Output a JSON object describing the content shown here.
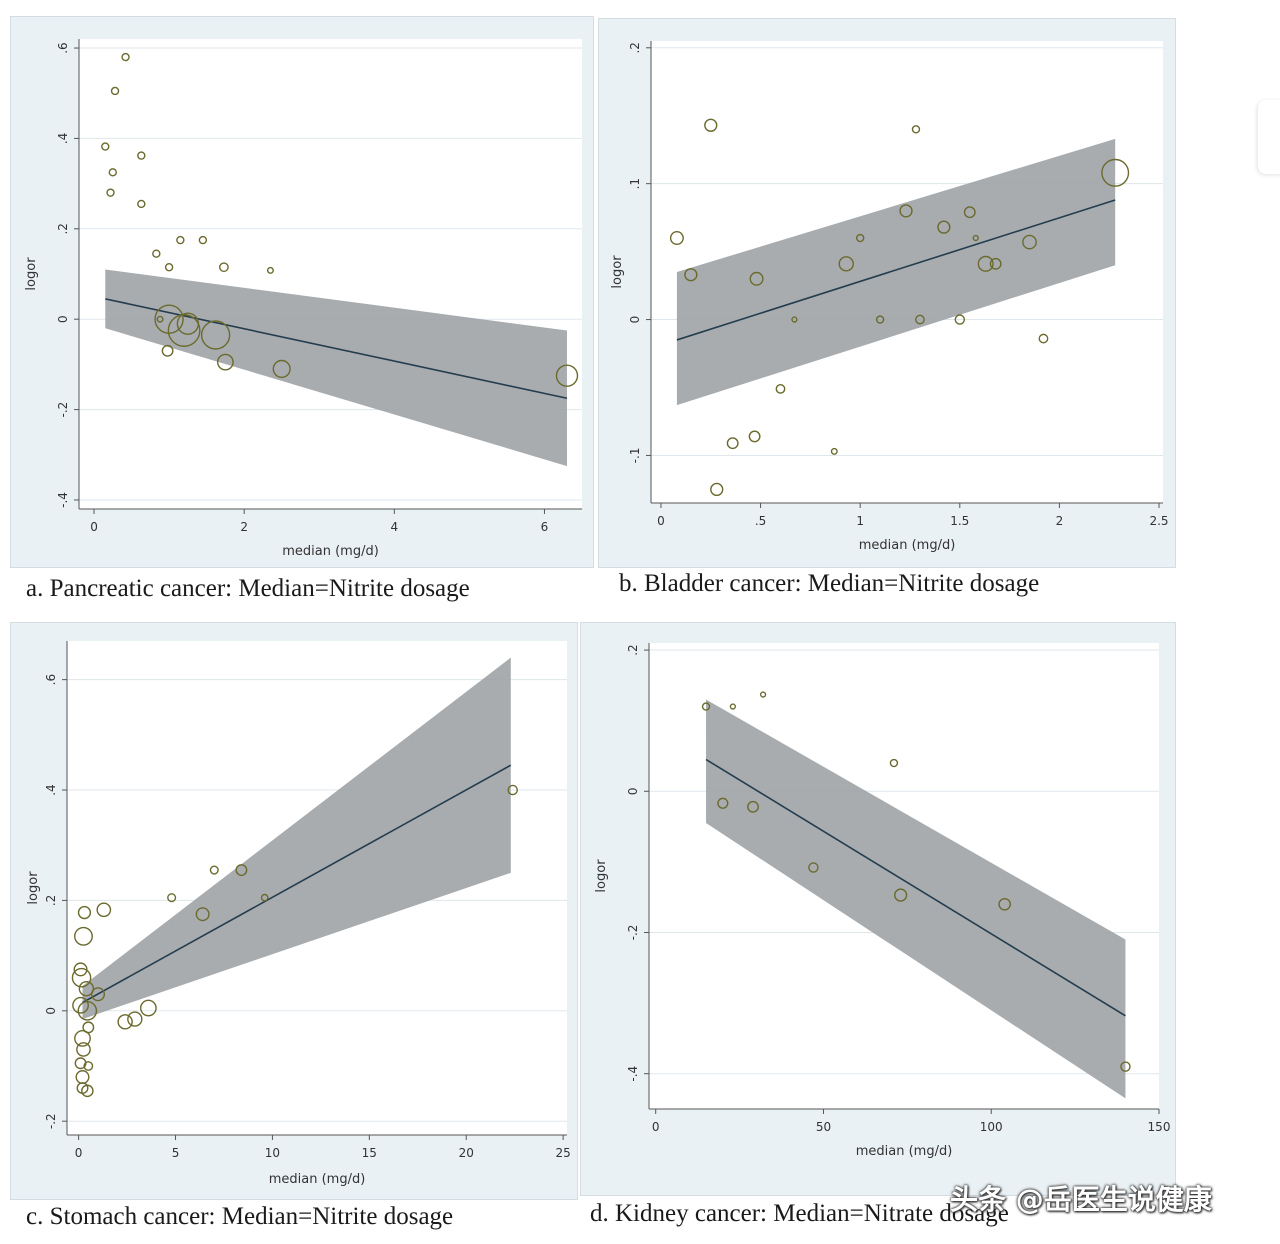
{
  "colors": {
    "panel_bg": "#eaf1f5",
    "plot_bg": "#ffffff",
    "band": "#9fa3a6",
    "fit_line": "#243d4e",
    "point": "#6b6a2e",
    "grid": "#dfe7ec"
  },
  "captions": {
    "a": "a. Pancreatic cancer: Median=Nitrite dosage",
    "b": "b. Bladder cancer: Median=Nitrite dosage",
    "c": "c. Stomach cancer: Median=Nitrite dosage",
    "d": "d. Kidney cancer: Median=Nitrate dosage"
  },
  "watermark": "头条 @岳医生说健康",
  "chart_data": [
    {
      "id": "a",
      "type": "scatter",
      "title": "Pancreatic cancer",
      "xlabel": "median (mg/d)",
      "ylabel": "logor",
      "xlim": [
        -0.2,
        6.5
      ],
      "ylim": [
        -0.42,
        0.62
      ],
      "xticks": [
        0,
        2,
        4,
        6
      ],
      "xtick_labels": [
        "0",
        "2",
        "4",
        "6"
      ],
      "yticks": [
        -0.4,
        -0.2,
        0,
        0.2,
        0.4,
        0.6
      ],
      "ytick_labels": [
        "-.4",
        "-.2",
        "0",
        ".2",
        ".4",
        ".6"
      ],
      "fit": {
        "x": [
          0.15,
          6.3
        ],
        "y": [
          0.045,
          -0.175
        ]
      },
      "band": {
        "x": [
          0.15,
          6.3
        ],
        "upper": [
          0.11,
          -0.025
        ],
        "lower": [
          -0.02,
          -0.325
        ]
      },
      "points": [
        {
          "x": 0.42,
          "y": 0.58,
          "r": 1
        },
        {
          "x": 0.28,
          "y": 0.505,
          "r": 1
        },
        {
          "x": 0.15,
          "y": 0.382,
          "r": 1
        },
        {
          "x": 0.63,
          "y": 0.362,
          "r": 1
        },
        {
          "x": 0.25,
          "y": 0.325,
          "r": 1
        },
        {
          "x": 0.22,
          "y": 0.28,
          "r": 1
        },
        {
          "x": 0.63,
          "y": 0.255,
          "r": 1
        },
        {
          "x": 1.15,
          "y": 0.175,
          "r": 1
        },
        {
          "x": 1.45,
          "y": 0.175,
          "r": 1
        },
        {
          "x": 0.83,
          "y": 0.145,
          "r": 1
        },
        {
          "x": 1.0,
          "y": 0.115,
          "r": 1
        },
        {
          "x": 1.73,
          "y": 0.115,
          "r": 1.2
        },
        {
          "x": 2.35,
          "y": 0.108,
          "r": 0.8
        },
        {
          "x": 0.88,
          "y": 0.0,
          "r": 0.8
        },
        {
          "x": 1.0,
          "y": 0.0,
          "r": 4
        },
        {
          "x": 1.2,
          "y": -0.025,
          "r": 4.5
        },
        {
          "x": 1.25,
          "y": -0.01,
          "r": 3
        },
        {
          "x": 1.62,
          "y": -0.035,
          "r": 4
        },
        {
          "x": 0.98,
          "y": -0.07,
          "r": 1.5
        },
        {
          "x": 1.75,
          "y": -0.095,
          "r": 2.2
        },
        {
          "x": 2.5,
          "y": -0.11,
          "r": 2.4
        },
        {
          "x": 6.3,
          "y": -0.125,
          "r": 3
        }
      ]
    },
    {
      "id": "b",
      "type": "scatter",
      "title": "Bladder cancer",
      "xlabel": "median (mg/d)",
      "ylabel": "logor",
      "xlim": [
        -0.05,
        2.52
      ],
      "ylim": [
        -0.135,
        0.205
      ],
      "xticks": [
        0,
        0.5,
        1,
        1.5,
        2,
        2.5
      ],
      "xtick_labels": [
        "0",
        ".5",
        "1",
        "1.5",
        "2",
        "2.5"
      ],
      "yticks": [
        -0.1,
        0,
        0.1,
        0.2
      ],
      "ytick_labels": [
        "-.1",
        "0",
        ".1",
        ".2"
      ],
      "fit": {
        "x": [
          0.08,
          2.28
        ],
        "y": [
          -0.015,
          0.088
        ]
      },
      "band": {
        "x": [
          0.08,
          2.28
        ],
        "upper": [
          0.035,
          0.133
        ],
        "lower": [
          -0.063,
          0.04
        ]
      },
      "points": [
        {
          "x": 0.25,
          "y": 0.143,
          "r": 1.7
        },
        {
          "x": 1.28,
          "y": 0.14,
          "r": 1
        },
        {
          "x": 2.28,
          "y": 0.108,
          "r": 3.8
        },
        {
          "x": 1.23,
          "y": 0.08,
          "r": 1.7
        },
        {
          "x": 1.55,
          "y": 0.079,
          "r": 1.5
        },
        {
          "x": 1.42,
          "y": 0.068,
          "r": 1.7
        },
        {
          "x": 0.08,
          "y": 0.06,
          "r": 1.8
        },
        {
          "x": 1.0,
          "y": 0.06,
          "r": 1
        },
        {
          "x": 1.58,
          "y": 0.06,
          "r": 0.7
        },
        {
          "x": 1.85,
          "y": 0.057,
          "r": 1.9
        },
        {
          "x": 0.93,
          "y": 0.041,
          "r": 2
        },
        {
          "x": 1.63,
          "y": 0.041,
          "r": 2.1
        },
        {
          "x": 1.68,
          "y": 0.041,
          "r": 1.5
        },
        {
          "x": 0.15,
          "y": 0.033,
          "r": 1.7
        },
        {
          "x": 0.48,
          "y": 0.03,
          "r": 1.8
        },
        {
          "x": 0.67,
          "y": 0.0,
          "r": 0.7
        },
        {
          "x": 1.1,
          "y": 0.0,
          "r": 1
        },
        {
          "x": 1.3,
          "y": 0.0,
          "r": 1.2
        },
        {
          "x": 1.5,
          "y": 0.0,
          "r": 1.3
        },
        {
          "x": 1.92,
          "y": -0.014,
          "r": 1.2
        },
        {
          "x": 0.6,
          "y": -0.051,
          "r": 1.2
        },
        {
          "x": 0.47,
          "y": -0.086,
          "r": 1.5
        },
        {
          "x": 0.36,
          "y": -0.091,
          "r": 1.5
        },
        {
          "x": 0.87,
          "y": -0.097,
          "r": 0.8
        },
        {
          "x": 0.28,
          "y": -0.125,
          "r": 1.7
        }
      ]
    },
    {
      "id": "c",
      "type": "scatter",
      "title": "Stomach cancer",
      "xlabel": "median (mg/d)",
      "ylabel": "logor",
      "xlim": [
        -0.6,
        25.2
      ],
      "ylim": [
        -0.225,
        0.67
      ],
      "xticks": [
        0,
        5,
        10,
        15,
        20,
        25
      ],
      "xtick_labels": [
        "0",
        "5",
        "10",
        "15",
        "20",
        "25"
      ],
      "yticks": [
        -0.2,
        0,
        0.2,
        0.4,
        0.6
      ],
      "ytick_labels": [
        "-.2",
        "0",
        ".2",
        ".4",
        ".6"
      ],
      "fit": {
        "x": [
          0.2,
          22.3
        ],
        "y": [
          0.015,
          0.445
        ]
      },
      "band": {
        "x": [
          0.2,
          22.3
        ],
        "upper": [
          0.045,
          0.64
        ],
        "lower": [
          -0.015,
          0.25
        ]
      },
      "points": [
        {
          "x": 22.4,
          "y": 0.4,
          "r": 1.3
        },
        {
          "x": 7.0,
          "y": 0.255,
          "r": 1.1
        },
        {
          "x": 8.4,
          "y": 0.255,
          "r": 1.5
        },
        {
          "x": 4.8,
          "y": 0.205,
          "r": 1.1
        },
        {
          "x": 9.6,
          "y": 0.205,
          "r": 0.9
        },
        {
          "x": 6.4,
          "y": 0.175,
          "r": 1.8
        },
        {
          "x": 0.3,
          "y": 0.178,
          "r": 1.7
        },
        {
          "x": 1.3,
          "y": 0.183,
          "r": 1.9
        },
        {
          "x": 0.25,
          "y": 0.135,
          "r": 2.5
        },
        {
          "x": 0.1,
          "y": 0.075,
          "r": 1.8
        },
        {
          "x": 0.15,
          "y": 0.06,
          "r": 2.6
        },
        {
          "x": 0.4,
          "y": 0.04,
          "r": 2.0
        },
        {
          "x": 0.1,
          "y": 0.01,
          "r": 2.2
        },
        {
          "x": 0.45,
          "y": 0.0,
          "r": 2.6
        },
        {
          "x": 1.0,
          "y": 0.03,
          "r": 1.8
        },
        {
          "x": 0.2,
          "y": -0.05,
          "r": 2.2
        },
        {
          "x": 0.5,
          "y": -0.03,
          "r": 1.5
        },
        {
          "x": 0.25,
          "y": -0.07,
          "r": 1.9
        },
        {
          "x": 0.1,
          "y": -0.095,
          "r": 1.5
        },
        {
          "x": 0.5,
          "y": -0.1,
          "r": 1.2
        },
        {
          "x": 0.2,
          "y": -0.12,
          "r": 1.8
        },
        {
          "x": 0.2,
          "y": -0.14,
          "r": 1.5
        },
        {
          "x": 0.45,
          "y": -0.145,
          "r": 1.6
        },
        {
          "x": 2.4,
          "y": -0.02,
          "r": 2.0
        },
        {
          "x": 2.9,
          "y": -0.015,
          "r": 2.0
        },
        {
          "x": 3.6,
          "y": 0.005,
          "r": 2.2
        }
      ]
    },
    {
      "id": "d",
      "type": "scatter",
      "title": "Kidney cancer",
      "xlabel": "median (mg/d)",
      "ylabel": "logor",
      "xlim": [
        -2,
        150
      ],
      "ylim": [
        -0.45,
        0.21
      ],
      "xticks": [
        0,
        50,
        100,
        150
      ],
      "xtick_labels": [
        "0",
        "50",
        "100",
        "150"
      ],
      "yticks": [
        -0.4,
        -0.2,
        0,
        0.2
      ],
      "ytick_labels": [
        "-.4",
        "-.2",
        "0",
        ".2"
      ],
      "fit": {
        "x": [
          15,
          140
        ],
        "y": [
          0.045,
          -0.318
        ]
      },
      "band": {
        "x": [
          15,
          140
        ],
        "upper": [
          0.13,
          -0.21
        ],
        "lower": [
          -0.045,
          -0.435
        ]
      },
      "points": [
        {
          "x": 15,
          "y": 0.12,
          "r": 1
        },
        {
          "x": 23,
          "y": 0.12,
          "r": 0.7
        },
        {
          "x": 32,
          "y": 0.137,
          "r": 0.7
        },
        {
          "x": 71,
          "y": 0.04,
          "r": 1
        },
        {
          "x": 20,
          "y": -0.017,
          "r": 1.4
        },
        {
          "x": 29,
          "y": -0.022,
          "r": 1.5
        },
        {
          "x": 47,
          "y": -0.108,
          "r": 1.3
        },
        {
          "x": 73,
          "y": -0.147,
          "r": 1.7
        },
        {
          "x": 104,
          "y": -0.16,
          "r": 1.6
        },
        {
          "x": 140,
          "y": -0.39,
          "r": 1.3
        }
      ]
    }
  ]
}
